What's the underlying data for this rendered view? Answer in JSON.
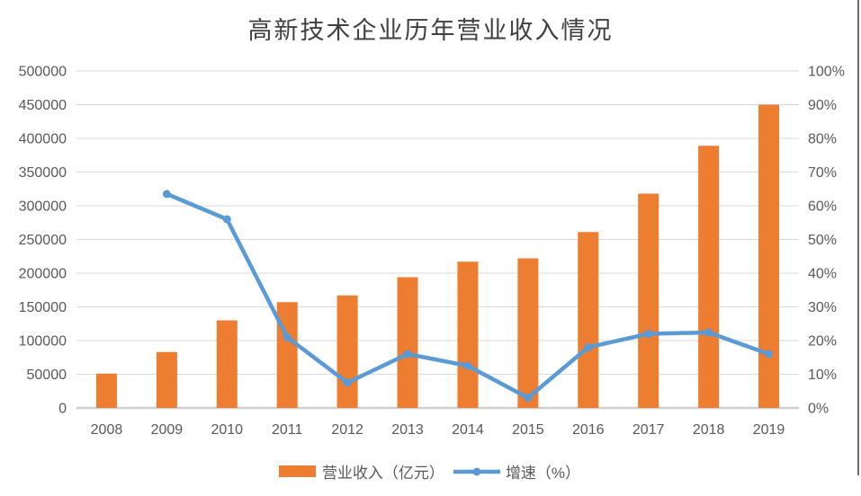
{
  "chart_data": {
    "type": "combo",
    "title": "高新技术企业历年营业收入情况",
    "categories": [
      "2008",
      "2009",
      "2010",
      "2011",
      "2012",
      "2013",
      "2014",
      "2015",
      "2016",
      "2017",
      "2018",
      "2019"
    ],
    "series": [
      {
        "name": "营业收入（亿元）",
        "kind": "bar",
        "axis": "left",
        "color": "#ED7D31",
        "values": [
          51000,
          83000,
          130000,
          157000,
          167000,
          194000,
          217000,
          222000,
          261000,
          318000,
          389000,
          450000
        ]
      },
      {
        "name": "增速（%）",
        "kind": "line",
        "axis": "right",
        "color": "#5B9BD5",
        "values": [
          null,
          63.5,
          56,
          21,
          7.5,
          16,
          12.5,
          3,
          18,
          22,
          22.4,
          16
        ]
      }
    ],
    "left_axis": {
      "min": 0,
      "max": 500000,
      "step": 50000,
      "tick_labels": [
        "0",
        "50000",
        "100000",
        "150000",
        "200000",
        "250000",
        "300000",
        "350000",
        "400000",
        "450000",
        "500000"
      ]
    },
    "right_axis": {
      "min": 0,
      "max": 100,
      "step": 10,
      "unit": "%",
      "tick_labels": [
        "0%",
        "10%",
        "20%",
        "30%",
        "40%",
        "50%",
        "60%",
        "70%",
        "80%",
        "90%",
        "100%"
      ]
    },
    "grid": true,
    "legend_position": "bottom",
    "colors": {
      "bar": "#ED7D31",
      "line": "#5B9BD5",
      "gridline": "#D9D9D9",
      "baseline": "#D0D0D0",
      "axis_text": "#595959",
      "title_text": "#404040"
    }
  }
}
